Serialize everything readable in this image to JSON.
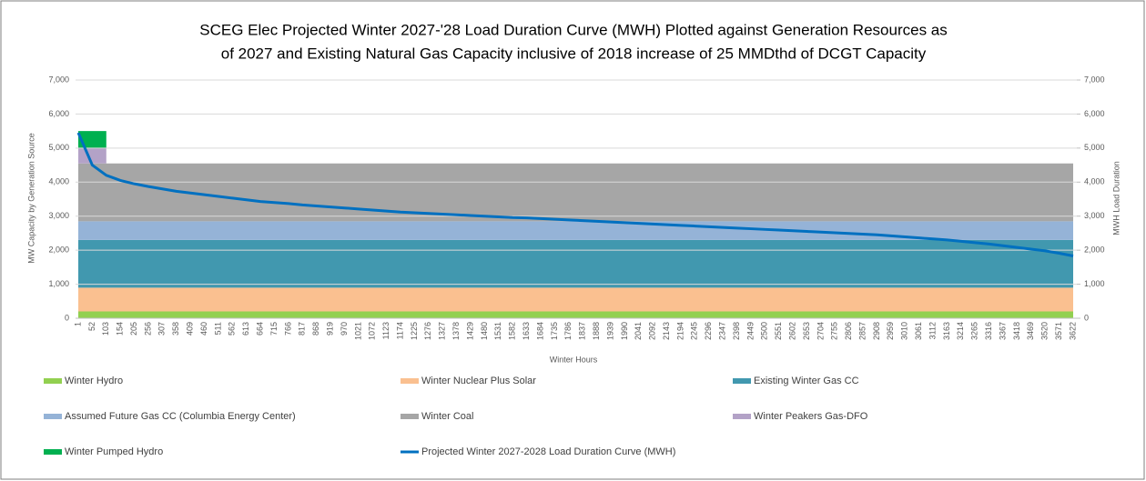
{
  "chart_data": {
    "type": "area",
    "title": [
      "SCEG Elec Projected Winter 2027-'28 Load Duration Curve (MWH) Plotted against Generation Resources as",
      "of 2027 and Existing Natural Gas Capacity inclusive of 2018 increase of 25 MMDthd of DCGT Capacity"
    ],
    "xlabel": "Winter Hours",
    "ylabel": "MW Capacity by Generation Source",
    "y2label": "MWH Load Duration",
    "categories": [
      "1",
      "52",
      "103",
      "154",
      "205",
      "256",
      "307",
      "358",
      "409",
      "460",
      "511",
      "562",
      "613",
      "664",
      "715",
      "766",
      "817",
      "868",
      "919",
      "970",
      "1021",
      "1072",
      "1123",
      "1174",
      "1225",
      "1276",
      "1327",
      "1378",
      "1429",
      "1480",
      "1531",
      "1582",
      "1633",
      "1684",
      "1735",
      "1786",
      "1837",
      "1888",
      "1939",
      "1990",
      "2041",
      "2092",
      "2143",
      "2194",
      "2245",
      "2296",
      "2347",
      "2398",
      "2449",
      "2500",
      "2551",
      "2602",
      "2653",
      "2704",
      "2755",
      "2806",
      "2857",
      "2908",
      "2959",
      "3010",
      "3061",
      "3112",
      "3163",
      "3214",
      "3265",
      "3316",
      "3367",
      "3418",
      "3469",
      "3520",
      "3571",
      "3622"
    ],
    "ylim": [
      0,
      7000
    ],
    "yticks": [
      0,
      {
        "value": 1000,
        "label": "1,000"
      },
      {
        "value": 2000,
        "label": "2,000"
      },
      {
        "value": 3000,
        "label": "3,000"
      },
      {
        "value": 4000,
        "label": "4,000"
      },
      {
        "value": 5000,
        "label": "5,000"
      },
      {
        "value": 6000,
        "label": "6,000"
      },
      {
        "value": 7000,
        "label": "7,000"
      }
    ],
    "y2lim": [
      0,
      7000
    ],
    "y2ticks": [
      0,
      {
        "value": 1000,
        "label": "1,000"
      },
      {
        "value": 2000,
        "label": "2,000"
      },
      {
        "value": 3000,
        "label": "3,000"
      },
      {
        "value": 4000,
        "label": "4,000"
      },
      {
        "value": 5000,
        "label": "5,000"
      },
      {
        "value": 6000,
        "label": "6,000"
      },
      {
        "value": 7000,
        "label": "7,000"
      }
    ],
    "grid": true,
    "legend": "bottom",
    "series": [
      {
        "name": "Winter Hydro",
        "color": "#92d050",
        "values": [
          200,
          200,
          200,
          200,
          200,
          200,
          200,
          200,
          200,
          200,
          200,
          200,
          200,
          200,
          200,
          200,
          200,
          200,
          200,
          200,
          200,
          200,
          200,
          200,
          200,
          200,
          200,
          200,
          200,
          200,
          200,
          200,
          200,
          200,
          200,
          200,
          200,
          200,
          200,
          200,
          200,
          200,
          200,
          200,
          200,
          200,
          200,
          200,
          200,
          200,
          200,
          200,
          200,
          200,
          200,
          200,
          200,
          200,
          200,
          200,
          200,
          200,
          200,
          200,
          200,
          200,
          200,
          200,
          200,
          200,
          200,
          200
        ]
      },
      {
        "name": "Winter Nuclear Plus Solar",
        "color": "#fac090",
        "values": [
          700,
          700,
          700,
          700,
          700,
          700,
          700,
          700,
          700,
          700,
          700,
          700,
          700,
          700,
          700,
          700,
          700,
          700,
          700,
          700,
          700,
          700,
          700,
          700,
          700,
          700,
          700,
          700,
          700,
          700,
          700,
          700,
          700,
          700,
          700,
          700,
          700,
          700,
          700,
          700,
          700,
          700,
          700,
          700,
          700,
          700,
          700,
          700,
          700,
          700,
          700,
          700,
          700,
          700,
          700,
          700,
          700,
          700,
          700,
          700,
          700,
          700,
          700,
          700,
          700,
          700,
          700,
          700,
          700,
          700,
          700,
          700
        ]
      },
      {
        "name": "Existing Winter Gas CC",
        "color": "#4198af",
        "values": [
          1400,
          1400,
          1400,
          1400,
          1400,
          1400,
          1400,
          1400,
          1400,
          1400,
          1400,
          1400,
          1400,
          1400,
          1400,
          1400,
          1400,
          1400,
          1400,
          1400,
          1400,
          1400,
          1400,
          1400,
          1400,
          1400,
          1400,
          1400,
          1400,
          1400,
          1400,
          1400,
          1400,
          1400,
          1400,
          1400,
          1400,
          1400,
          1400,
          1400,
          1400,
          1400,
          1400,
          1400,
          1400,
          1400,
          1400,
          1400,
          1400,
          1400,
          1400,
          1400,
          1400,
          1400,
          1400,
          1400,
          1400,
          1400,
          1400,
          1400,
          1400,
          1400,
          1400,
          1400,
          1400,
          1400,
          1400,
          1400,
          1400,
          1400,
          1400,
          1400
        ]
      },
      {
        "name": "Assumed Future Gas CC (Columbia Energy Center)",
        "color": "#95b3d7",
        "values": [
          550,
          550,
          550,
          550,
          550,
          550,
          550,
          550,
          550,
          550,
          550,
          550,
          550,
          550,
          550,
          550,
          550,
          550,
          550,
          550,
          550,
          550,
          550,
          550,
          550,
          550,
          550,
          550,
          550,
          550,
          550,
          550,
          550,
          550,
          550,
          550,
          550,
          550,
          550,
          550,
          550,
          550,
          550,
          550,
          550,
          550,
          550,
          550,
          550,
          550,
          550,
          550,
          550,
          550,
          550,
          550,
          550,
          550,
          550,
          550,
          550,
          550,
          550,
          550,
          550,
          550,
          550,
          550,
          550,
          550,
          550,
          550
        ]
      },
      {
        "name": "Winter Coal",
        "color": "#a6a6a6",
        "values": [
          1700,
          1700,
          1700,
          1700,
          1700,
          1700,
          1700,
          1700,
          1700,
          1700,
          1700,
          1700,
          1700,
          1700,
          1700,
          1700,
          1700,
          1700,
          1700,
          1700,
          1700,
          1700,
          1700,
          1700,
          1700,
          1700,
          1700,
          1700,
          1700,
          1700,
          1700,
          1700,
          1700,
          1700,
          1700,
          1700,
          1700,
          1700,
          1700,
          1700,
          1700,
          1700,
          1700,
          1700,
          1700,
          1700,
          1700,
          1700,
          1700,
          1700,
          1700,
          1700,
          1700,
          1700,
          1700,
          1700,
          1700,
          1700,
          1700,
          1700,
          1700,
          1700,
          1700,
          1700,
          1700,
          1700,
          1700,
          1700,
          1700,
          1700,
          1700,
          1700
        ]
      },
      {
        "name": "Winter Peakers Gas-DFO",
        "color": "#b3a2c7",
        "values": [
          450,
          450,
          450,
          null,
          null,
          null,
          null,
          null,
          null,
          null,
          null,
          null,
          null,
          null,
          null,
          null,
          null,
          null,
          null,
          null,
          null,
          null,
          null,
          null,
          null,
          null,
          null,
          null,
          null,
          null,
          null,
          null,
          null,
          null,
          null,
          null,
          null,
          null,
          null,
          null,
          null,
          null,
          null,
          null,
          null,
          null,
          null,
          null,
          null,
          null,
          null,
          null,
          null,
          null,
          null,
          null,
          null,
          null,
          null,
          null,
          null,
          null,
          null,
          null,
          null,
          null,
          null,
          null,
          null,
          null,
          null,
          null
        ]
      },
      {
        "name": "Winter Pumped Hydro",
        "color": "#00b050",
        "values": [
          500,
          500,
          500,
          null,
          null,
          null,
          null,
          null,
          null,
          null,
          null,
          null,
          null,
          null,
          null,
          null,
          null,
          null,
          null,
          null,
          null,
          null,
          null,
          null,
          null,
          null,
          null,
          null,
          null,
          null,
          null,
          null,
          null,
          null,
          null,
          null,
          null,
          null,
          null,
          null,
          null,
          null,
          null,
          null,
          null,
          null,
          null,
          null,
          null,
          null,
          null,
          null,
          null,
          null,
          null,
          null,
          null,
          null,
          null,
          null,
          null,
          null,
          null,
          null,
          null,
          null,
          null,
          null,
          null,
          null,
          null,
          null
        ]
      },
      {
        "name": "Projected Winter 2027-2028 Load Duration Curve (MWH)",
        "color": "#0070c0",
        "type": "line",
        "axis": "y2",
        "values": [
          5450,
          4500,
          4200,
          4050,
          3950,
          3870,
          3800,
          3730,
          3680,
          3630,
          3580,
          3530,
          3480,
          3430,
          3400,
          3370,
          3330,
          3300,
          3270,
          3240,
          3210,
          3180,
          3150,
          3120,
          3100,
          3080,
          3060,
          3040,
          3020,
          3000,
          2980,
          2960,
          2950,
          2930,
          2910,
          2890,
          2870,
          2850,
          2830,
          2810,
          2790,
          2770,
          2750,
          2730,
          2710,
          2690,
          2670,
          2650,
          2630,
          2610,
          2590,
          2570,
          2550,
          2530,
          2510,
          2490,
          2470,
          2450,
          2420,
          2390,
          2360,
          2330,
          2300,
          2260,
          2220,
          2180,
          2130,
          2080,
          2030,
          1980,
          1910,
          1830
        ]
      }
    ]
  }
}
